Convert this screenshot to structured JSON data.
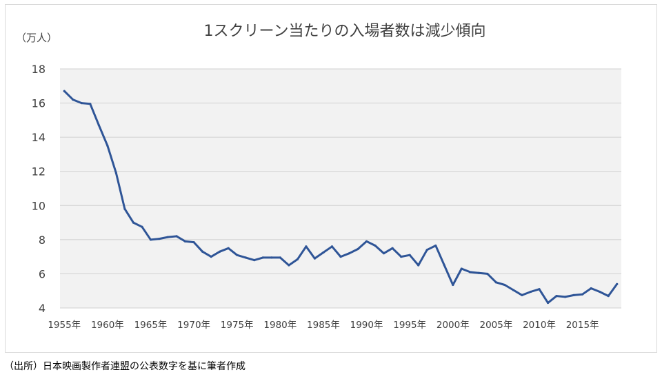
{
  "chart_data": {
    "type": "line",
    "title": "1スクリーン当たりの入場者数は減少傾向",
    "unit_label": "（万人）",
    "xlabel": "",
    "ylabel": "",
    "ylim": [
      4,
      18
    ],
    "yticks": [
      4,
      6,
      8,
      10,
      12,
      14,
      16,
      18
    ],
    "xticks": [
      {
        "year": 1955,
        "label": "1955年"
      },
      {
        "year": 1960,
        "label": "1960年"
      },
      {
        "year": 1965,
        "label": "1965年"
      },
      {
        "year": 1970,
        "label": "1970年"
      },
      {
        "year": 1975,
        "label": "1975年"
      },
      {
        "year": 1980,
        "label": "1980年"
      },
      {
        "year": 1985,
        "label": "1985年"
      },
      {
        "year": 1990,
        "label": "1990年"
      },
      {
        "year": 1995,
        "label": "1995年"
      },
      {
        "year": 2000,
        "label": "2000年"
      },
      {
        "year": 2005,
        "label": "2005年"
      },
      {
        "year": 2010,
        "label": "2010年"
      },
      {
        "year": 2015,
        "label": "2015年"
      }
    ],
    "grid": true,
    "plot_background": "#f2f2f2",
    "line_color": "#2f5597",
    "x": [
      1955,
      1956,
      1957,
      1958,
      1959,
      1960,
      1961,
      1962,
      1963,
      1964,
      1965,
      1966,
      1967,
      1968,
      1969,
      1970,
      1971,
      1972,
      1973,
      1974,
      1975,
      1976,
      1977,
      1978,
      1979,
      1980,
      1981,
      1982,
      1983,
      1984,
      1985,
      1986,
      1987,
      1988,
      1989,
      1990,
      1991,
      1992,
      1993,
      1994,
      1995,
      1996,
      1997,
      1998,
      1999,
      2000,
      2001,
      2002,
      2003,
      2004,
      2005,
      2006,
      2007,
      2008,
      2009,
      2010,
      2011,
      2012,
      2013,
      2014,
      2015,
      2016,
      2017,
      2018,
      2019
    ],
    "series": [
      {
        "values": [
          16.7,
          16.2,
          16.0,
          15.95,
          14.7,
          13.5,
          11.9,
          9.8,
          9.0,
          8.75,
          8.0,
          8.05,
          8.15,
          8.2,
          7.9,
          7.85,
          7.3,
          7.0,
          7.3,
          7.5,
          7.1,
          6.95,
          6.8,
          6.95,
          6.95,
          6.95,
          6.5,
          6.85,
          7.6,
          6.9,
          7.25,
          7.6,
          7.0,
          7.2,
          7.45,
          7.9,
          7.65,
          7.2,
          7.5,
          7.0,
          7.1,
          6.5,
          7.4,
          7.65,
          6.5,
          5.35,
          6.3,
          6.1,
          6.05,
          6.0,
          5.5,
          5.35,
          5.05,
          4.75,
          4.95,
          5.1,
          4.3,
          4.7,
          4.65,
          4.75,
          4.8,
          5.15,
          4.95,
          4.7,
          5.4
        ]
      }
    ]
  },
  "source_note": "（出所）日本映画製作者連盟の公表数字を基に筆者作成"
}
